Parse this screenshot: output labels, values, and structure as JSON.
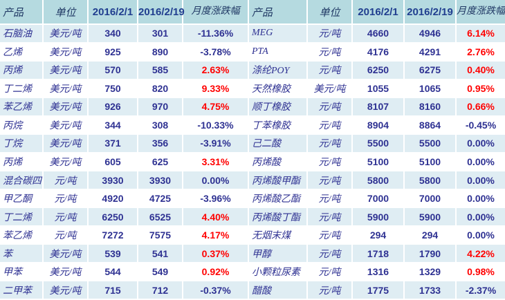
{
  "colors": {
    "header_bg": "#b5dae0",
    "row_stripe_bg": "#dfedf3",
    "row_bg": "#ffffff",
    "text_navy": "#2e3192",
    "gain_red": "#ff0000"
  },
  "tables": [
    {
      "name": "petrochemical-prices-left",
      "headers": [
        "产品",
        "单位",
        "2016/2/1",
        "2016/2/19",
        "月度涨跌幅"
      ],
      "rows": [
        {
          "product": "石脑油",
          "unit": "美元/吨",
          "p1": "340",
          "p2": "301",
          "change": "-11.36%",
          "up": false
        },
        {
          "product": "乙烯",
          "unit": "美元/吨",
          "p1": "925",
          "p2": "890",
          "change": "-3.78%",
          "up": false
        },
        {
          "product": "丙烯",
          "unit": "美元/吨",
          "p1": "570",
          "p2": "585",
          "change": "2.63%",
          "up": true
        },
        {
          "product": "丁二烯",
          "unit": "美元/吨",
          "p1": "750",
          "p2": "820",
          "change": "9.33%",
          "up": true
        },
        {
          "product": "苯乙烯",
          "unit": "美元/吨",
          "p1": "926",
          "p2": "970",
          "change": "4.75%",
          "up": true
        },
        {
          "product": "丙烷",
          "unit": "美元/吨",
          "p1": "344",
          "p2": "308",
          "change": "-10.33%",
          "up": false
        },
        {
          "product": "丁烷",
          "unit": "美元/吨",
          "p1": "371",
          "p2": "356",
          "change": "-3.91%",
          "up": false
        },
        {
          "product": "丙烯",
          "unit": "美元/吨",
          "p1": "605",
          "p2": "625",
          "change": "3.31%",
          "up": true
        },
        {
          "product": "混合碳四",
          "unit": "元/吨",
          "p1": "3930",
          "p2": "3930",
          "change": "0.00%",
          "up": false
        },
        {
          "product": "甲乙酮",
          "unit": "元/吨",
          "p1": "4920",
          "p2": "4725",
          "change": "-3.96%",
          "up": false
        },
        {
          "product": "丁二烯",
          "unit": "元/吨",
          "p1": "6250",
          "p2": "6525",
          "change": "4.40%",
          "up": true
        },
        {
          "product": "苯乙烯",
          "unit": "元/吨",
          "p1": "7272",
          "p2": "7575",
          "change": "4.17%",
          "up": true
        },
        {
          "product": "苯",
          "unit": "美元/吨",
          "p1": "539",
          "p2": "541",
          "change": "0.37%",
          "up": true
        },
        {
          "product": "甲苯",
          "unit": "美元/吨",
          "p1": "544",
          "p2": "549",
          "change": "0.92%",
          "up": true
        },
        {
          "product": "二甲苯",
          "unit": "美元/吨",
          "p1": "715",
          "p2": "712",
          "change": "-0.37%",
          "up": false
        }
      ]
    },
    {
      "name": "petrochemical-prices-right",
      "headers": [
        "产品",
        "单位",
        "2016/2/1",
        "2016/2/19",
        "月度涨跌幅"
      ],
      "rows": [
        {
          "product": "MEG",
          "unit": "元/吨",
          "p1": "4660",
          "p2": "4946",
          "change": "6.14%",
          "up": true
        },
        {
          "product": "PTA",
          "unit": "元/吨",
          "p1": "4176",
          "p2": "4291",
          "change": "2.76%",
          "up": true
        },
        {
          "product": "涤纶POY",
          "unit": "元/吨",
          "p1": "6250",
          "p2": "6275",
          "change": "0.40%",
          "up": true
        },
        {
          "product": "天然橡胶",
          "unit": "美元/吨",
          "p1": "1055",
          "p2": "1065",
          "change": "0.95%",
          "up": true
        },
        {
          "product": "顺丁橡胶",
          "unit": "元/吨",
          "p1": "8107",
          "p2": "8160",
          "change": "0.66%",
          "up": true
        },
        {
          "product": "丁苯橡胶",
          "unit": "元/吨",
          "p1": "8904",
          "p2": "8864",
          "change": "-0.45%",
          "up": false
        },
        {
          "product": "己二酸",
          "unit": "元/吨",
          "p1": "5500",
          "p2": "5500",
          "change": "0.00%",
          "up": false
        },
        {
          "product": "丙烯酸",
          "unit": "元/吨",
          "p1": "5100",
          "p2": "5100",
          "change": "0.00%",
          "up": false
        },
        {
          "product": "丙烯酸甲酯",
          "unit": "元/吨",
          "p1": "5800",
          "p2": "5800",
          "change": "0.00%",
          "up": false
        },
        {
          "product": "丙烯酸乙酯",
          "unit": "元/吨",
          "p1": "7000",
          "p2": "7000",
          "change": "0.00%",
          "up": false
        },
        {
          "product": "丙烯酸丁酯",
          "unit": "元/吨",
          "p1": "5900",
          "p2": "5900",
          "change": "0.00%",
          "up": false
        },
        {
          "product": "无烟末煤",
          "unit": "元/吨",
          "p1": "294",
          "p2": "294",
          "change": "0.00%",
          "up": false
        },
        {
          "product": "甲醇",
          "unit": "元/吨",
          "p1": "1718",
          "p2": "1790",
          "change": "4.22%",
          "up": true
        },
        {
          "product": "小颗粒尿素",
          "unit": "元/吨",
          "p1": "1316",
          "p2": "1329",
          "change": "0.98%",
          "up": true
        },
        {
          "product": "醋酸",
          "unit": "元/吨",
          "p1": "1775",
          "p2": "1733",
          "change": "-2.37%",
          "up": false
        }
      ]
    }
  ]
}
